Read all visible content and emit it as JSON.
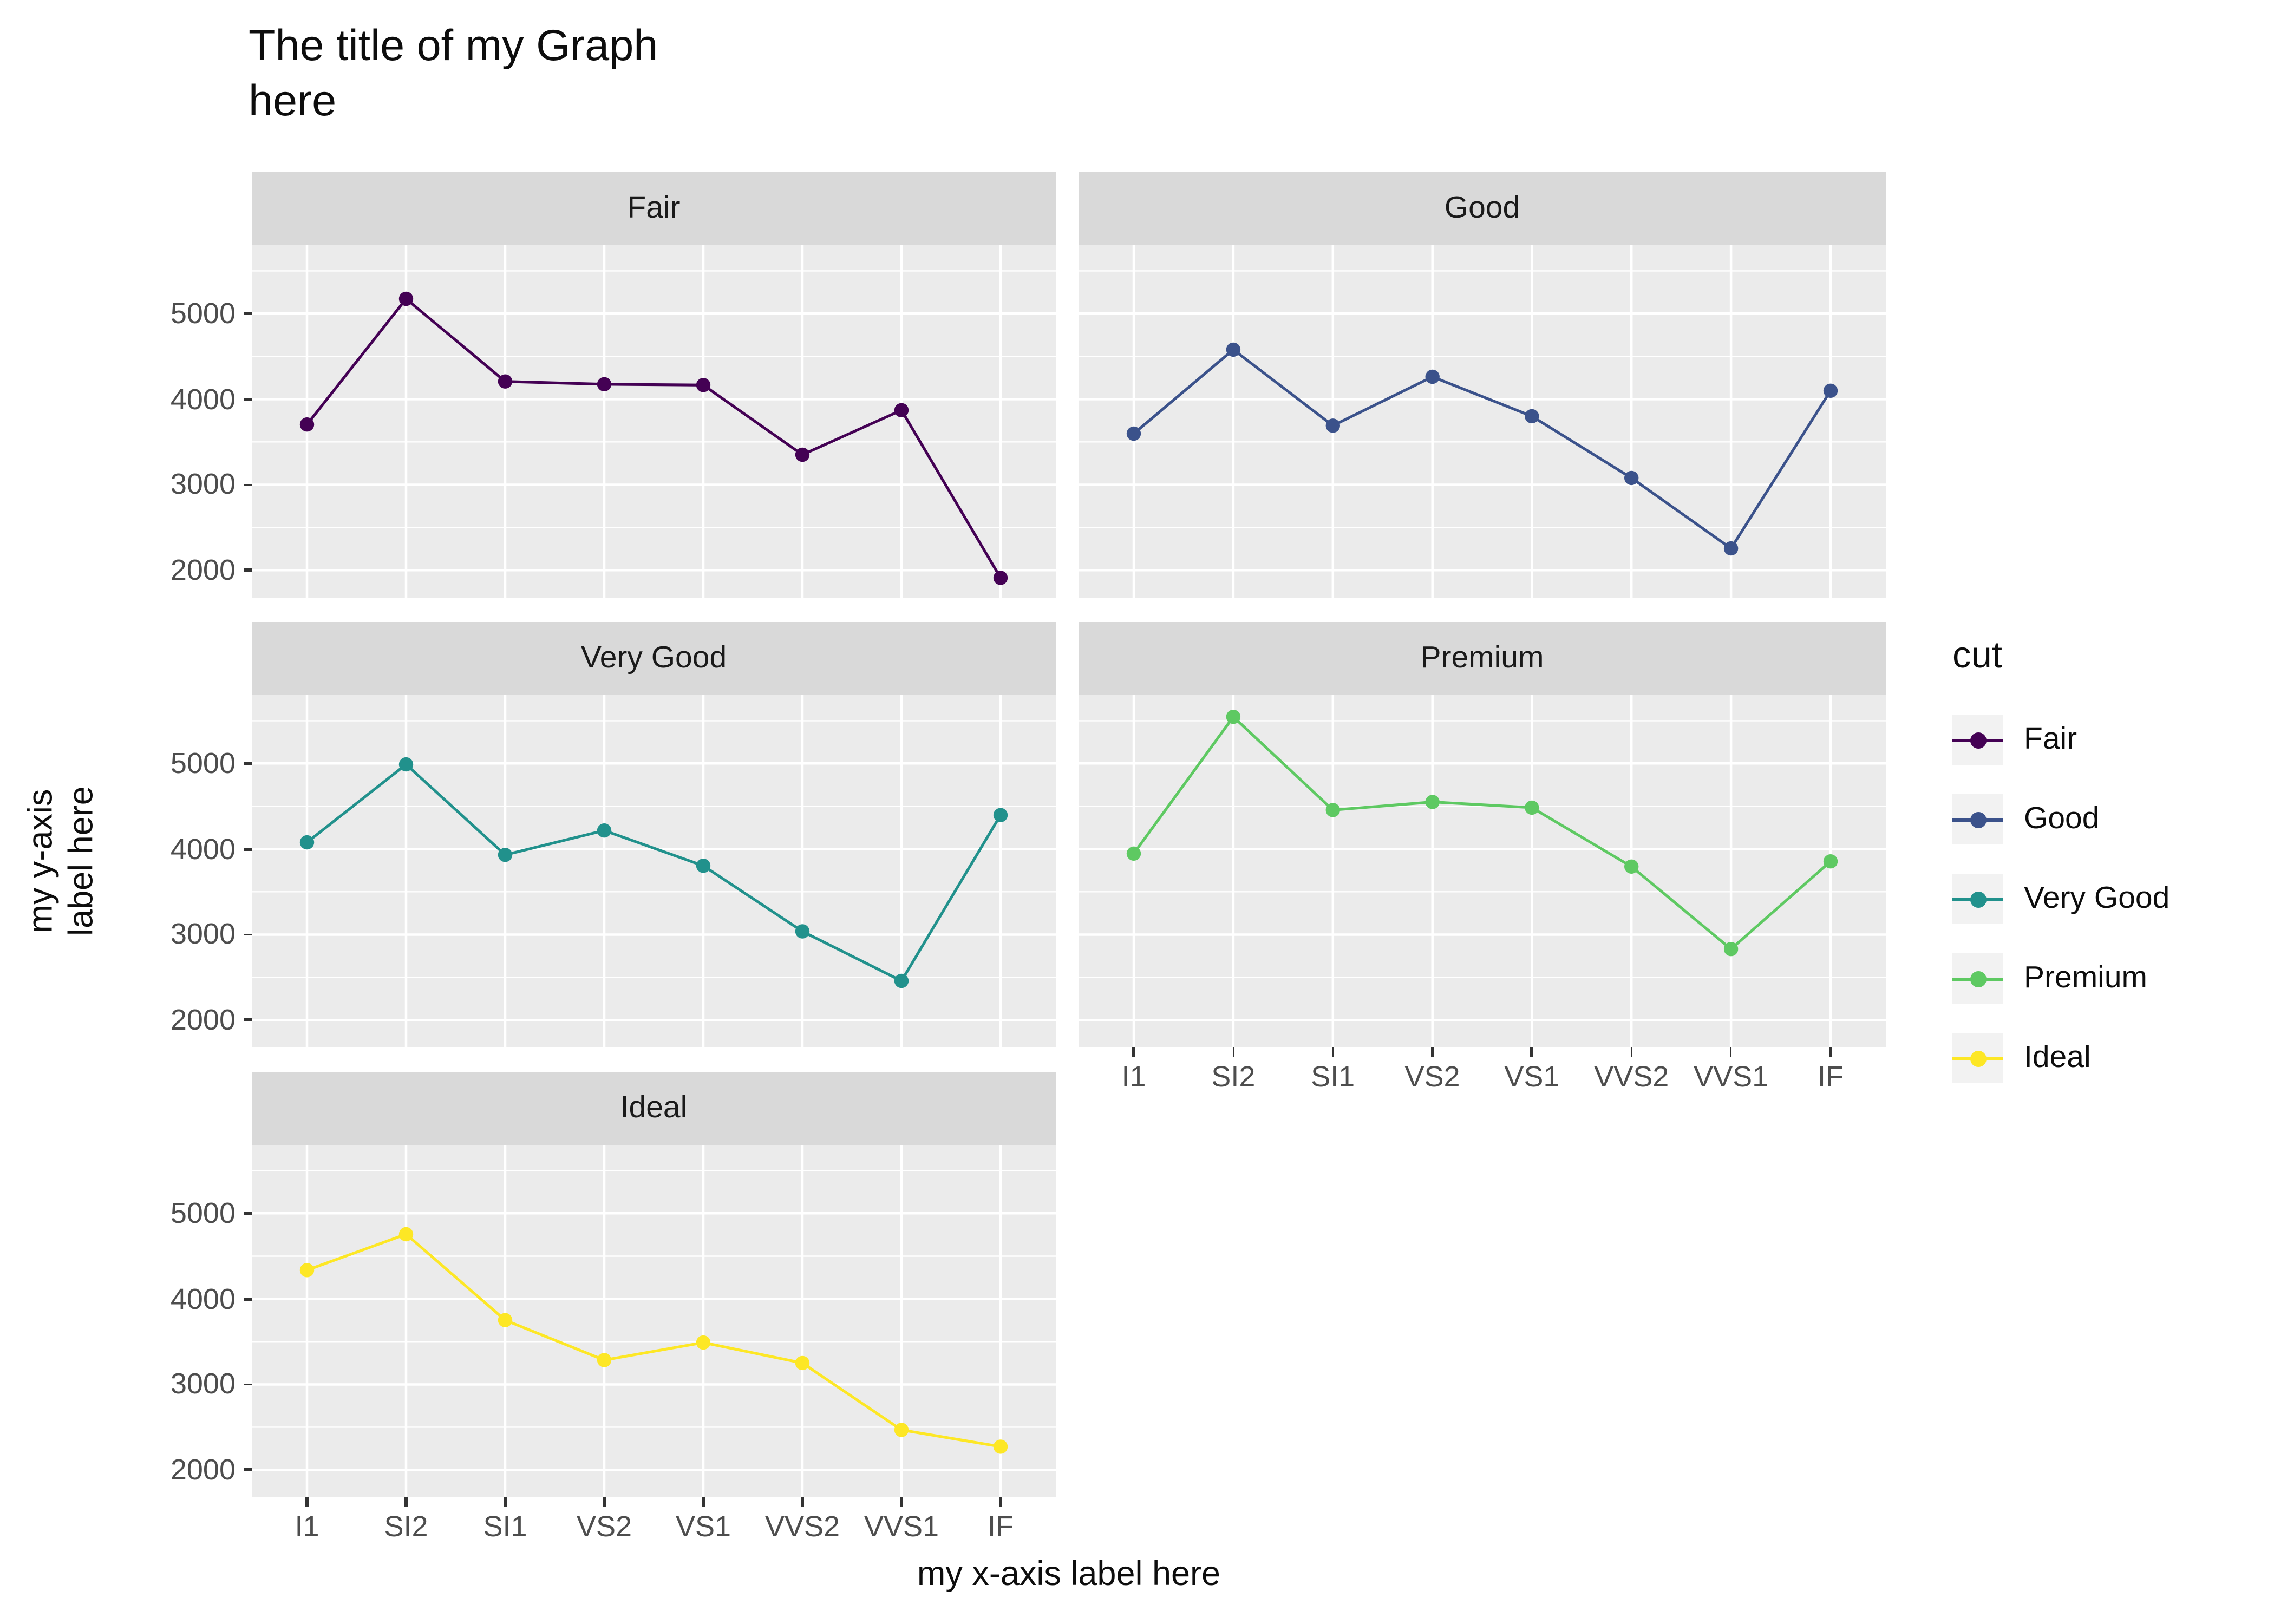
{
  "title": "The title of my Graph\nhere",
  "axes": {
    "x_label": "my x-axis label here",
    "y_label": "my y-axis\nlabel here",
    "x_categories": [
      "I1",
      "SI2",
      "SI1",
      "VS2",
      "VS1",
      "VVS2",
      "VVS1",
      "IF"
    ],
    "y_ticks": [
      2000,
      3000,
      4000,
      5000
    ]
  },
  "legend": {
    "title": "cut",
    "items": [
      {
        "label": "Fair",
        "color": "#440154"
      },
      {
        "label": "Good",
        "color": "#3B528B"
      },
      {
        "label": "Very Good",
        "color": "#21918C"
      },
      {
        "label": "Premium",
        "color": "#5EC962"
      },
      {
        "label": "Ideal",
        "color": "#FDE725"
      }
    ]
  },
  "chart_data": {
    "type": "line",
    "title": "The title of my Graph here",
    "xlabel": "my x-axis label here",
    "ylabel": "my y-axis label here",
    "facet_by": "cut",
    "x": [
      "I1",
      "SI2",
      "SI1",
      "VS2",
      "VS1",
      "VVS2",
      "VVS1",
      "IF"
    ],
    "ylim": [
      1680,
      5800
    ],
    "y_ticks": [
      2000,
      3000,
      4000,
      5000
    ],
    "y_minor": [
      2500,
      3500,
      4500,
      5500
    ],
    "grid": true,
    "legend_position": "right",
    "panel_background": "#EBEBEB",
    "strip_background": "#D9D9D9",
    "facets": [
      {
        "name": "Fair",
        "color": "#440154",
        "values": [
          3704,
          5174,
          4208,
          4175,
          4165,
          3350,
          3871,
          1912
        ]
      },
      {
        "name": "Good",
        "color": "#3B528B",
        "values": [
          3597,
          4580,
          3690,
          4262,
          3801,
          3079,
          2255,
          4098
        ]
      },
      {
        "name": "Very Good",
        "color": "#21918C",
        "values": [
          4078,
          4989,
          3932,
          4216,
          3805,
          3038,
          2459,
          4396
        ]
      },
      {
        "name": "Premium",
        "color": "#5EC962",
        "values": [
          3947,
          5546,
          4455,
          4550,
          4485,
          3795,
          2831,
          3856
        ]
      },
      {
        "name": "Ideal",
        "color": "#FDE725",
        "values": [
          4336,
          4756,
          3752,
          3285,
          3490,
          3250,
          2468,
          2273
        ]
      }
    ]
  }
}
